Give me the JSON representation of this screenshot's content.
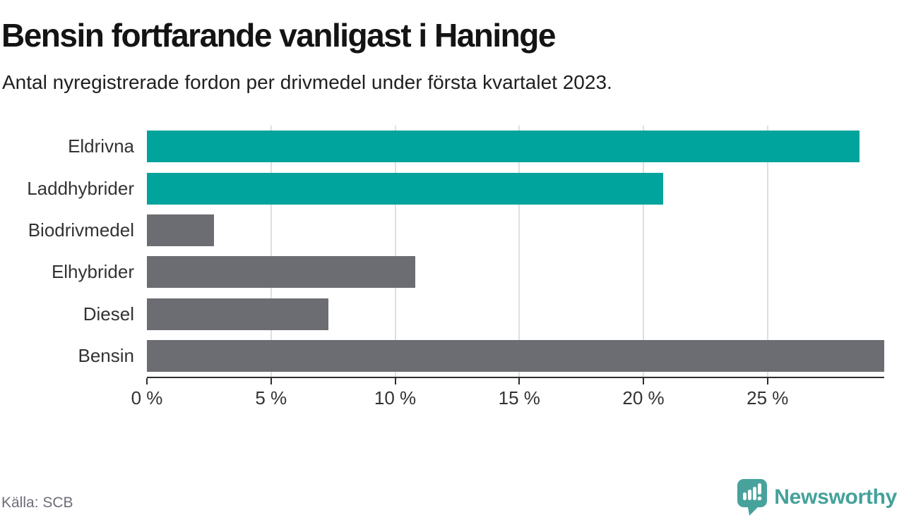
{
  "header": {
    "title": "Bensin fortfarande vanligast i Haninge",
    "subtitle": "Antal nyregistrerade fordon per drivmedel under första kvartalet 2023."
  },
  "chart_data": {
    "type": "bar",
    "orientation": "horizontal",
    "title": "Bensin fortfarande vanligast i Haninge",
    "subtitle": "Antal nyregistrerade fordon per drivmedel under första kvartalet 2023.",
    "categories": [
      "Eldrivna",
      "Laddhybrider",
      "Biodrivmedel",
      "Elhybrider",
      "Diesel",
      "Bensin"
    ],
    "values": [
      28.7,
      20.8,
      2.7,
      10.8,
      7.3,
      29.7
    ],
    "unit": "%",
    "bar_colors": [
      "#00a49c",
      "#00a49c",
      "#6c6d72",
      "#6c6d72",
      "#6c6d72",
      "#6c6d72"
    ],
    "xlabel": "",
    "ylabel": "",
    "xlim": [
      0,
      29.7
    ],
    "x_ticks": [
      0,
      5,
      10,
      15,
      20,
      25
    ],
    "x_tick_labels": [
      "0 %",
      "5 %",
      "10 %",
      "15 %",
      "20 %",
      "25 %"
    ],
    "grid": "vertical-only",
    "legend": "none"
  },
  "footer": {
    "source": "Källa: SCB",
    "logo_text": "Newsworthy"
  },
  "colors": {
    "accent_teal": "#00a49c",
    "bar_gray": "#6c6d72",
    "axis": "#2d2d2d",
    "gridline": "#dfdfdf",
    "text_dark": "#333333",
    "title_color": "#141414",
    "source_gray": "#6d6d78",
    "logo_teal": "#44a19b"
  }
}
